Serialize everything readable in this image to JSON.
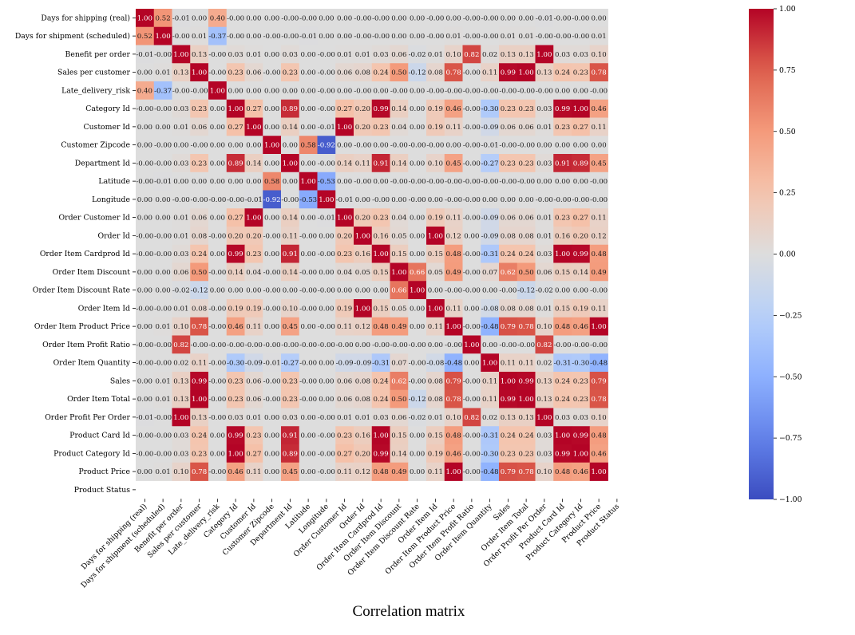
{
  "caption": "Correlation matrix",
  "chart_data": {
    "type": "heatmap",
    "labels": [
      "Days for shipping (real)",
      "Days for shipment (scheduled)",
      "Benefit per order",
      "Sales per customer",
      "Late_delivery_risk",
      "Category Id",
      "Customer Id",
      "Customer Zipcode",
      "Department Id",
      "Latitude",
      "Longitude",
      "Order Customer Id",
      "Order Id",
      "Order Item Cardprod Id",
      "Order Item Discount",
      "Order Item Discount Rate",
      "Order Item Id",
      "Order Item Product Price",
      "Order Item Profit Ratio",
      "Order Item Quantity",
      "Sales",
      "Order Item Total",
      "Order Profit Per Order",
      "Product Card Id",
      "Product Category Id",
      "Product Price",
      "Product Status"
    ],
    "matrix": [
      [
        "1.00",
        "0.52",
        "-0.01",
        "0.00",
        "0.40",
        "-0.00",
        "0.00",
        "0.00",
        "-0.00",
        "-0.00",
        "0.00",
        "0.00",
        "-0.00",
        "-0.00",
        "0.00",
        "0.00",
        "-0.00",
        "0.00",
        "-0.00",
        "-0.00",
        "0.00",
        "0.00",
        "-0.01",
        "-0.00",
        "-0.00",
        "0.00",
        null
      ],
      [
        "0.52",
        "1.00",
        "-0.00",
        "0.01",
        "-0.37",
        "-0.00",
        "0.00",
        "-0.00",
        "-0.00",
        "-0.01",
        "0.00",
        "0.00",
        "-0.00",
        "-0.00",
        "0.00",
        "0.00",
        "-0.00",
        "0.01",
        "-0.00",
        "-0.00",
        "0.01",
        "0.01",
        "-0.00",
        "-0.00",
        "-0.00",
        "0.01",
        null
      ],
      [
        "-0.01",
        "-0.00",
        "1.00",
        "0.13",
        "-0.00",
        "0.03",
        "0.01",
        "0.00",
        "0.03",
        "0.00",
        "-0.00",
        "0.01",
        "0.01",
        "0.03",
        "0.06",
        "-0.02",
        "0.01",
        "0.10",
        "0.82",
        "0.02",
        "0.13",
        "0.13",
        "1.00",
        "0.03",
        "0.03",
        "0.10",
        null
      ],
      [
        "0.00",
        "0.01",
        "0.13",
        "1.00",
        "-0.00",
        "0.23",
        "0.06",
        "-0.00",
        "0.23",
        "0.00",
        "-0.00",
        "0.06",
        "0.08",
        "0.24",
        "0.50",
        "-0.12",
        "0.08",
        "0.78",
        "-0.00",
        "0.11",
        "0.99",
        "1.00",
        "0.13",
        "0.24",
        "0.23",
        "0.78",
        null
      ],
      [
        "0.40",
        "-0.37",
        "-0.00",
        "-0.00",
        "1.00",
        "0.00",
        "0.00",
        "0.00",
        "0.00",
        "0.00",
        "-0.00",
        "0.00",
        "-0.00",
        "0.00",
        "-0.00",
        "0.00",
        "-0.00",
        "-0.00",
        "-0.00",
        "-0.00",
        "-0.00",
        "-0.00",
        "-0.00",
        "0.00",
        "0.00",
        "-0.00",
        null
      ],
      [
        "-0.00",
        "-0.00",
        "0.03",
        "0.23",
        "0.00",
        "1.00",
        "0.27",
        "0.00",
        "0.89",
        "0.00",
        "-0.00",
        "0.27",
        "0.20",
        "0.99",
        "0.14",
        "0.00",
        "0.19",
        "0.46",
        "-0.00",
        "-0.30",
        "0.23",
        "0.23",
        "0.03",
        "0.99",
        "1.00",
        "0.46",
        null
      ],
      [
        "0.00",
        "0.00",
        "0.01",
        "0.06",
        "0.00",
        "0.27",
        "1.00",
        "0.00",
        "0.14",
        "0.00",
        "-0.01",
        "1.00",
        "0.20",
        "0.23",
        "0.04",
        "0.00",
        "0.19",
        "0.11",
        "-0.00",
        "-0.09",
        "0.06",
        "0.06",
        "0.01",
        "0.23",
        "0.27",
        "0.11",
        null
      ],
      [
        "0.00",
        "-0.00",
        "0.00",
        "-0.00",
        "0.00",
        "0.00",
        "0.00",
        "1.00",
        "0.00",
        "0.58",
        "-0.92",
        "0.00",
        "-0.00",
        "0.00",
        "-0.00",
        "-0.00",
        "-0.00",
        "0.00",
        "-0.00",
        "-0.01",
        "-0.00",
        "-0.00",
        "0.00",
        "0.00",
        "0.00",
        "0.00",
        null
      ],
      [
        "-0.00",
        "-0.00",
        "0.03",
        "0.23",
        "0.00",
        "0.89",
        "0.14",
        "0.00",
        "1.00",
        "0.00",
        "-0.00",
        "0.14",
        "0.11",
        "0.91",
        "0.14",
        "0.00",
        "0.10",
        "0.45",
        "-0.00",
        "-0.27",
        "0.23",
        "0.23",
        "0.03",
        "0.91",
        "0.89",
        "0.45",
        null
      ],
      [
        "-0.00",
        "-0.01",
        "0.00",
        "0.00",
        "0.00",
        "0.00",
        "0.00",
        "0.58",
        "0.00",
        "1.00",
        "-0.53",
        "0.00",
        "-0.00",
        "0.00",
        "-0.00",
        "-0.00",
        "-0.00",
        "-0.00",
        "-0.00",
        "-0.00",
        "-0.00",
        "-0.00",
        "0.00",
        "0.00",
        "0.00",
        "-0.00",
        null
      ],
      [
        "0.00",
        "0.00",
        "-0.00",
        "-0.00",
        "-0.00",
        "-0.00",
        "-0.01",
        "-0.92",
        "-0.00",
        "-0.53",
        "1.00",
        "-0.01",
        "0.00",
        "-0.00",
        "0.00",
        "-0.00",
        "0.00",
        "-0.00",
        "-0.00",
        "0.00",
        "0.00",
        "0.00",
        "-0.00",
        "-0.00",
        "-0.00",
        "-0.00",
        null
      ],
      [
        "0.00",
        "0.00",
        "0.01",
        "0.06",
        "0.00",
        "0.27",
        "1.00",
        "0.00",
        "0.14",
        "0.00",
        "-0.01",
        "1.00",
        "0.20",
        "0.23",
        "0.04",
        "0.00",
        "0.19",
        "0.11",
        "-0.00",
        "-0.09",
        "0.06",
        "0.06",
        "0.01",
        "0.23",
        "0.27",
        "0.11",
        null
      ],
      [
        "-0.00",
        "-0.00",
        "0.01",
        "0.08",
        "-0.00",
        "0.20",
        "0.20",
        "-0.00",
        "0.11",
        "-0.00",
        "0.00",
        "0.20",
        "1.00",
        "0.16",
        "0.05",
        "0.00",
        "1.00",
        "0.12",
        "0.00",
        "-0.09",
        "0.08",
        "0.08",
        "0.01",
        "0.16",
        "0.20",
        "0.12",
        null
      ],
      [
        "-0.00",
        "-0.00",
        "0.03",
        "0.24",
        "0.00",
        "0.99",
        "0.23",
        "0.00",
        "0.91",
        "0.00",
        "-0.00",
        "0.23",
        "0.16",
        "1.00",
        "0.15",
        "0.00",
        "0.15",
        "0.48",
        "-0.00",
        "-0.31",
        "0.24",
        "0.24",
        "0.03",
        "1.00",
        "0.99",
        "0.48",
        null
      ],
      [
        "0.00",
        "0.00",
        "0.06",
        "0.50",
        "-0.00",
        "0.14",
        "0.04",
        "-0.00",
        "0.14",
        "-0.00",
        "0.00",
        "0.04",
        "0.05",
        "0.15",
        "1.00",
        "0.66",
        "0.05",
        "0.49",
        "-0.00",
        "0.07",
        "0.62",
        "0.50",
        "0.06",
        "0.15",
        "0.14",
        "0.49",
        null
      ],
      [
        "0.00",
        "0.00",
        "-0.02",
        "-0.12",
        "0.00",
        "0.00",
        "0.00",
        "-0.00",
        "0.00",
        "-0.00",
        "-0.00",
        "0.00",
        "0.00",
        "0.00",
        "0.66",
        "1.00",
        "0.00",
        "-0.00",
        "-0.00",
        "0.00",
        "-0.00",
        "-0.12",
        "-0.02",
        "0.00",
        "0.00",
        "-0.00",
        null
      ],
      [
        "-0.00",
        "-0.00",
        "0.01",
        "0.08",
        "-0.00",
        "0.19",
        "0.19",
        "-0.00",
        "0.10",
        "-0.00",
        "0.00",
        "0.19",
        "1.00",
        "0.15",
        "0.05",
        "0.00",
        "1.00",
        "0.11",
        "0.00",
        "-0.08",
        "0.08",
        "0.08",
        "0.01",
        "0.15",
        "0.19",
        "0.11",
        null
      ],
      [
        "0.00",
        "0.01",
        "0.10",
        "0.78",
        "-0.00",
        "0.46",
        "0.11",
        "0.00",
        "0.45",
        "0.00",
        "-0.00",
        "0.11",
        "0.12",
        "0.48",
        "0.49",
        "0.00",
        "0.11",
        "1.00",
        "-0.00",
        "-0.48",
        "0.79",
        "0.78",
        "0.10",
        "0.48",
        "0.46",
        "1.00",
        null
      ],
      [
        "-0.00",
        "-0.00",
        "0.82",
        "-0.00",
        "-0.00",
        "-0.00",
        "-0.00",
        "-0.00",
        "-0.00",
        "-0.00",
        "-0.00",
        "-0.00",
        "0.00",
        "-0.00",
        "-0.00",
        "-0.00",
        "0.00",
        "-0.00",
        "1.00",
        "0.00",
        "-0.00",
        "-0.00",
        "0.82",
        "-0.00",
        "-0.00",
        "-0.00",
        null
      ],
      [
        "-0.00",
        "-0.00",
        "0.02",
        "0.11",
        "-0.00",
        "-0.30",
        "-0.09",
        "-0.01",
        "-0.27",
        "-0.00",
        "0.00",
        "-0.09",
        "-0.09",
        "-0.31",
        "0.07",
        "-0.00",
        "-0.08",
        "-0.48",
        "0.00",
        "1.00",
        "0.11",
        "0.11",
        "0.02",
        "-0.31",
        "-0.30",
        "-0.48",
        null
      ],
      [
        "0.00",
        "0.01",
        "0.13",
        "0.99",
        "-0.00",
        "0.23",
        "0.06",
        "-0.00",
        "0.23",
        "-0.00",
        "0.00",
        "0.06",
        "0.08",
        "0.24",
        "0.62",
        "-0.00",
        "0.08",
        "0.79",
        "-0.00",
        "0.11",
        "1.00",
        "0.99",
        "0.13",
        "0.24",
        "0.23",
        "0.79",
        null
      ],
      [
        "0.00",
        "0.01",
        "0.13",
        "1.00",
        "-0.00",
        "0.23",
        "0.06",
        "-0.00",
        "0.23",
        "-0.00",
        "0.00",
        "0.06",
        "0.08",
        "0.24",
        "0.50",
        "-0.12",
        "0.08",
        "0.78",
        "-0.00",
        "0.11",
        "0.99",
        "1.00",
        "0.13",
        "0.24",
        "0.23",
        "0.78",
        null
      ],
      [
        "-0.01",
        "-0.00",
        "1.00",
        "0.13",
        "-0.00",
        "0.03",
        "0.01",
        "0.00",
        "0.03",
        "0.00",
        "-0.00",
        "0.01",
        "0.01",
        "0.03",
        "0.06",
        "-0.02",
        "0.01",
        "0.10",
        "0.82",
        "0.02",
        "0.13",
        "0.13",
        "1.00",
        "0.03",
        "0.03",
        "0.10",
        null
      ],
      [
        "-0.00",
        "-0.00",
        "0.03",
        "0.24",
        "0.00",
        "0.99",
        "0.23",
        "0.00",
        "0.91",
        "0.00",
        "-0.00",
        "0.23",
        "0.16",
        "1.00",
        "0.15",
        "0.00",
        "0.15",
        "0.48",
        "-0.00",
        "-0.31",
        "0.24",
        "0.24",
        "0.03",
        "1.00",
        "0.99",
        "0.48",
        null
      ],
      [
        "-0.00",
        "-0.00",
        "0.03",
        "0.23",
        "0.00",
        "1.00",
        "0.27",
        "0.00",
        "0.89",
        "0.00",
        "-0.00",
        "0.27",
        "0.20",
        "0.99",
        "0.14",
        "0.00",
        "0.19",
        "0.46",
        "-0.00",
        "-0.30",
        "0.23",
        "0.23",
        "0.03",
        "0.99",
        "1.00",
        "0.46",
        null
      ],
      [
        "0.00",
        "0.01",
        "0.10",
        "0.78",
        "-0.00",
        "0.46",
        "0.11",
        "0.00",
        "0.45",
        "0.00",
        "-0.00",
        "0.11",
        "0.12",
        "0.48",
        "0.49",
        "0.00",
        "0.11",
        "1.00",
        "-0.00",
        "-0.48",
        "0.79",
        "0.78",
        "0.10",
        "0.48",
        "0.46",
        "1.00",
        null
      ],
      [
        null,
        null,
        null,
        null,
        null,
        null,
        null,
        null,
        null,
        null,
        null,
        null,
        null,
        null,
        null,
        null,
        null,
        null,
        null,
        null,
        null,
        null,
        null,
        null,
        null,
        null,
        null
      ]
    ],
    "colorbar": {
      "min": -1.0,
      "max": 1.0,
      "colormap": "coolwarm",
      "ticks": [
        "1.00",
        "0.75",
        "0.50",
        "0.25",
        "0.00",
        "−0.25",
        "−0.50",
        "−0.75",
        "−1.00"
      ]
    },
    "annotations": true,
    "grid": false
  }
}
